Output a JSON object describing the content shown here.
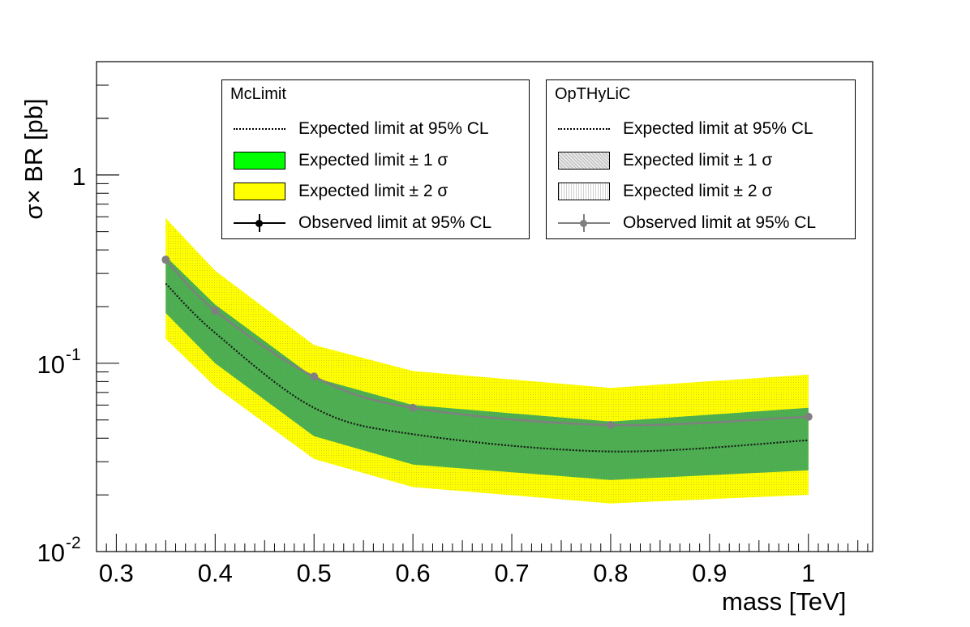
{
  "chart_data": {
    "type": "line",
    "xlabel": "mass [TeV]",
    "ylabel": "σ× BR [pb]",
    "xlim": [
      0.28,
      1.065
    ],
    "ylim": [
      0.01,
      4.0
    ],
    "yscale": "log",
    "x_ticks": [
      "0.3",
      "0.4",
      "0.5",
      "0.6",
      "0.7",
      "0.8",
      "0.9",
      "1"
    ],
    "y_ticks": [
      {
        "base": "10",
        "exp": "-2",
        "value": 0.01
      },
      {
        "base": "10",
        "exp": "-1",
        "value": 0.1
      },
      {
        "base": "1",
        "exp": "",
        "value": 1
      }
    ],
    "mass": [
      0.35,
      0.4,
      0.5,
      0.6,
      0.8,
      1.0
    ],
    "mclimit": {
      "expected": [
        0.265,
        0.145,
        0.058,
        0.042,
        0.034,
        0.039
      ],
      "band1_low": [
        0.185,
        0.1,
        0.041,
        0.029,
        0.024,
        0.027
      ],
      "band1_high": [
        0.37,
        0.205,
        0.084,
        0.06,
        0.049,
        0.058
      ],
      "band2_low": [
        0.135,
        0.075,
        0.031,
        0.022,
        0.018,
        0.02
      ],
      "band2_high": [
        0.59,
        0.31,
        0.125,
        0.091,
        0.074,
        0.087
      ],
      "observed": [
        0.355,
        0.19,
        0.085,
        0.058,
        0.047,
        0.052
      ]
    },
    "opthylic": {
      "expected": [
        0.265,
        0.145,
        0.058,
        0.042,
        0.034,
        0.039
      ],
      "observed": [
        0.355,
        0.19,
        0.085,
        0.058,
        0.047,
        0.052
      ]
    },
    "colors": {
      "band1": "#4caf50",
      "band1_legend": "#00ff00",
      "band2": "#ffff00",
      "observed_mclimit": "#000000",
      "observed_opthylic": "#808080",
      "expected": "#000000"
    }
  },
  "legend_mclimit": {
    "title": "McLimit",
    "expected": "Expected limit at 95% CL",
    "band1": "Expected limit  ± 1 σ",
    "band2": "Expected limit  ± 2 σ",
    "observed": "Observed limit at 95% CL"
  },
  "legend_opthylic": {
    "title": "OpTHyLiC",
    "expected": "Expected limit at 95% CL",
    "band1": "Expected limit  ± 1 σ",
    "band2": "Expected limit  ± 2 σ",
    "observed": "Observed limit at 95% CL"
  }
}
